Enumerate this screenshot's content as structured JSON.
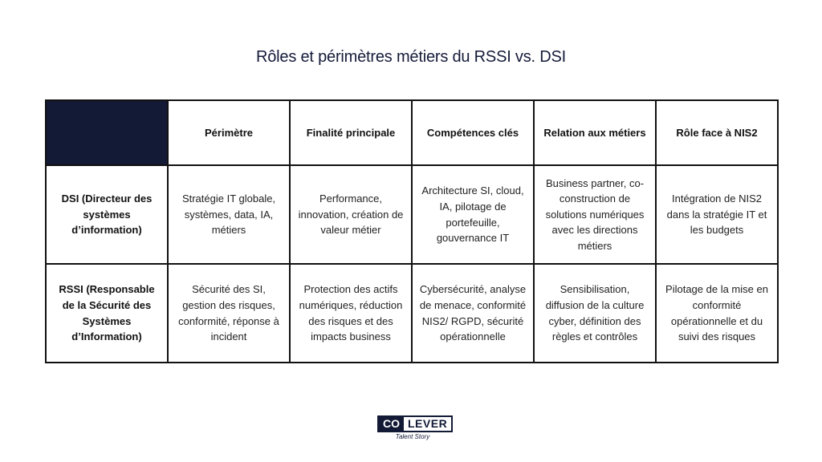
{
  "title": "Rôles et périmètres métiers du RSSI vs. DSI",
  "colors": {
    "header_accent": "#131a36",
    "title": "#151b3a"
  },
  "table": {
    "headers": [
      "",
      "Périmètre",
      "Finalité principale",
      "Compétences clés",
      "Relation aux métiers",
      "Rôle face à NIS2"
    ],
    "rows": [
      {
        "label": "DSI (Directeur des systèmes d’information)",
        "cells": [
          "Stratégie IT globale, systèmes, data, IA, métiers",
          "Performance, innovation, création de valeur métier",
          "Architecture SI, cloud, IA, pilotage de portefeuille, gouvernance IT",
          "Business partner, co-construction de solutions numériques avec les directions métiers",
          "Intégration de NIS2 dans la stratégie IT et les budgets"
        ]
      },
      {
        "label": "RSSI (Responsable de la Sécurité des Systèmes d’Information)",
        "cells": [
          "Sécurité des SI, gestion des risques, conformité, réponse à incident",
          "Protection des actifs numériques, réduction des risques et des impacts business",
          "Cybersécurité, analyse de menace, conformité NIS2/ RGPD, sécurité opérationnelle",
          "Sensibilisation, diffusion de la culture cyber, définition des règles et contrôles",
          "Pilotage de la mise en conformité opérationnelle et du suivi des risques"
        ]
      }
    ]
  },
  "logo": {
    "part1": "CO",
    "part2": "LEVER",
    "tagline": "Talent Story"
  }
}
